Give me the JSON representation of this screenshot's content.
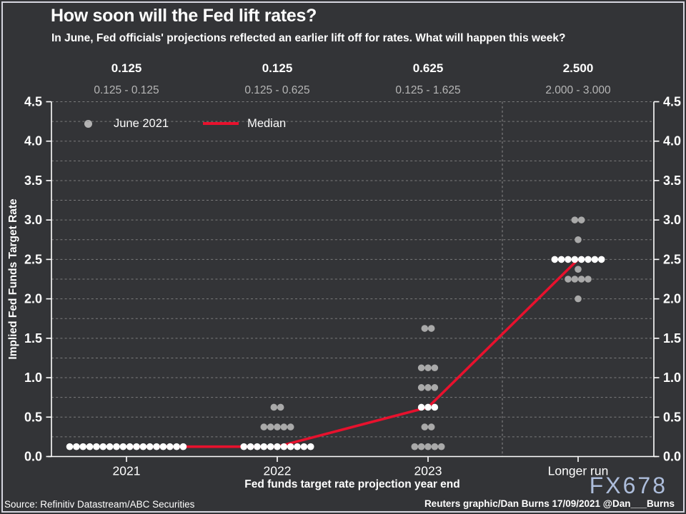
{
  "title": "How soon will the Fed lift rates?",
  "subtitle": "In June, Fed officials' projections reflected an earlier lift off for rates. What will happen this week?",
  "annotations": {
    "medians": [
      "0.125",
      "0.125",
      "0.625",
      "2.500"
    ],
    "ranges": [
      "0.125 - 0.125",
      "0.125 - 0.625",
      "0.125 - 1.625",
      "2.000 - 3.000"
    ]
  },
  "legend": {
    "dots_label": "June 2021",
    "median_label": "Median"
  },
  "axes": {
    "y_label": "Implied Fed Funds Target Rate",
    "x_label": "Fed funds target rate projection year end",
    "y_ticks": [
      "0.0",
      "0.5",
      "1.0",
      "1.5",
      "2.0",
      "2.5",
      "3.0",
      "3.5",
      "4.0",
      "4.5"
    ],
    "x_ticks": [
      "2021",
      "2022",
      "2023",
      "Longer run"
    ]
  },
  "footer": {
    "source": "Source: Refinitiv Datastream/ABC Securities",
    "credit": "Reuters graphic/Dan Burns 17/09/2021 @Dan___Burns",
    "watermark": "FX678"
  },
  "colors": {
    "background": "#333437",
    "frame_border": "#d5d5df",
    "text": "#ffffff",
    "muted_text": "#b6b6b6",
    "gridline": "#8f8f8f",
    "axis": "#ffffff",
    "dot_gray": "#a9a9a9",
    "dot_median": "#ffffff",
    "median_red": "#e8112d",
    "watermark": "#b4c5e4"
  },
  "chart_data": {
    "type": "scatter",
    "title": "How soon will the Fed lift rates?",
    "xlabel": "Fed funds target rate projection year end",
    "ylabel": "Implied Fed Funds Target Rate",
    "ylim": [
      0,
      4.5
    ],
    "y_tick_step": 0.5,
    "gridline_step": 0.25,
    "grid": "dashed",
    "legend_position": "top-left-inside",
    "categories": [
      "2021",
      "2022",
      "2023",
      "Longer run"
    ],
    "dot_groups": [
      {
        "category": "2021",
        "groups": [
          {
            "value": 0.125,
            "count": 18,
            "median": true
          }
        ]
      },
      {
        "category": "2022",
        "groups": [
          {
            "value": 0.125,
            "count": 11,
            "median": true
          },
          {
            "value": 0.375,
            "count": 5,
            "median": false
          },
          {
            "value": 0.625,
            "count": 2,
            "median": false
          }
        ]
      },
      {
        "category": "2023",
        "groups": [
          {
            "value": 0.125,
            "count": 5,
            "median": false
          },
          {
            "value": 0.375,
            "count": 2,
            "median": false
          },
          {
            "value": 0.625,
            "count": 3,
            "median": true
          },
          {
            "value": 0.875,
            "count": 3,
            "median": false
          },
          {
            "value": 1.125,
            "count": 3,
            "median": false
          },
          {
            "value": 1.625,
            "count": 2,
            "median": false
          }
        ]
      },
      {
        "category": "Longer run",
        "groups": [
          {
            "value": 2.0,
            "count": 1,
            "median": false
          },
          {
            "value": 2.25,
            "count": 4,
            "median": false
          },
          {
            "value": 2.375,
            "count": 1,
            "median": false
          },
          {
            "value": 2.5,
            "count": 8,
            "median": true
          },
          {
            "value": 2.75,
            "count": 1,
            "median": false
          },
          {
            "value": 3.0,
            "count": 2,
            "median": false
          }
        ]
      }
    ],
    "series": [
      {
        "name": "Median",
        "values": [
          0.125,
          0.125,
          0.625,
          2.5
        ]
      }
    ],
    "median_values": [
      0.125,
      0.125,
      0.625,
      2.5
    ],
    "central_tendency_ranges": [
      [
        0.125,
        0.125
      ],
      [
        0.125,
        0.625
      ],
      [
        0.125,
        1.625
      ],
      [
        2.0,
        3.0
      ]
    ]
  }
}
